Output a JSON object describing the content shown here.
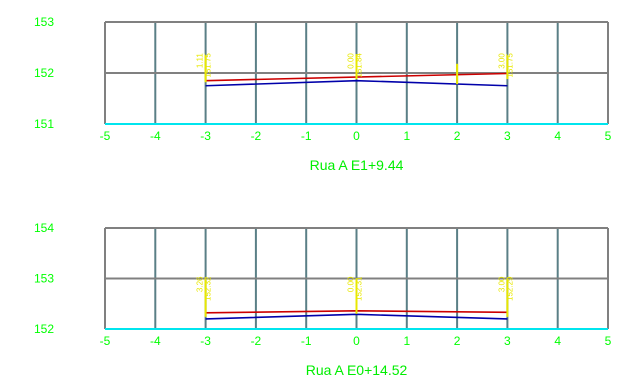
{
  "colors": {
    "frame": "#808080",
    "grid_vertical": "#5a7f86",
    "baseline": "#00e5ee",
    "tick_label": "#00ff00",
    "title": "#00ee00",
    "grade_line": "#cc0000",
    "ground_line": "#0000aa",
    "marker": "#e8e800"
  },
  "sections": [
    {
      "title": "Rua A E1+9.44",
      "x_ticks": [
        "-5",
        "-4",
        "-3",
        "-2",
        "-1",
        "0",
        "1",
        "2",
        "3",
        "4",
        "5"
      ],
      "y_ticks": [
        "153",
        "152",
        "151"
      ],
      "ylim": [
        151,
        153
      ],
      "xlim": [
        -5,
        5
      ],
      "grade_line": [
        [
          -3,
          151.85
        ],
        [
          3,
          151.99
        ]
      ],
      "ground_line": [
        [
          -3,
          151.75
        ],
        [
          0,
          151.85
        ],
        [
          3,
          151.75
        ]
      ],
      "markers": [
        {
          "x": -3,
          "top": 152.35,
          "bottom": 151.82,
          "labels": [
            "1.11",
            "151.75"
          ]
        },
        {
          "x": 0,
          "top": 152.35,
          "bottom": 151.88,
          "labels": [
            "0.00",
            "151.84"
          ]
        },
        {
          "x": 3,
          "top": 152.35,
          "bottom": 151.88,
          "labels": [
            "3.00",
            "151.75"
          ]
        },
        {
          "x": 2,
          "top": 152.18,
          "bottom": 151.78,
          "labels": []
        }
      ]
    },
    {
      "title": "Rua A E0+14.52",
      "x_ticks": [
        "-5",
        "-4",
        "-3",
        "-2",
        "-1",
        "0",
        "1",
        "2",
        "3",
        "4",
        "5"
      ],
      "y_ticks": [
        "154",
        "153",
        "152"
      ],
      "ylim": [
        152,
        154
      ],
      "xlim": [
        -5,
        5
      ],
      "grade_line": [
        [
          -3,
          152.32
        ],
        [
          0,
          152.36
        ],
        [
          3,
          152.33
        ]
      ],
      "ground_line": [
        [
          -3,
          152.2
        ],
        [
          0,
          152.29
        ],
        [
          3,
          152.2
        ]
      ],
      "markers": [
        {
          "x": -3,
          "top": 153.0,
          "bottom": 152.24,
          "labels": [
            "3.26",
            "152.32"
          ]
        },
        {
          "x": 0,
          "top": 153.0,
          "bottom": 152.3,
          "labels": [
            "0.00",
            "152.31"
          ]
        },
        {
          "x": 3,
          "top": 153.0,
          "bottom": 152.24,
          "labels": [
            "3.00",
            "152.29"
          ]
        }
      ]
    }
  ]
}
